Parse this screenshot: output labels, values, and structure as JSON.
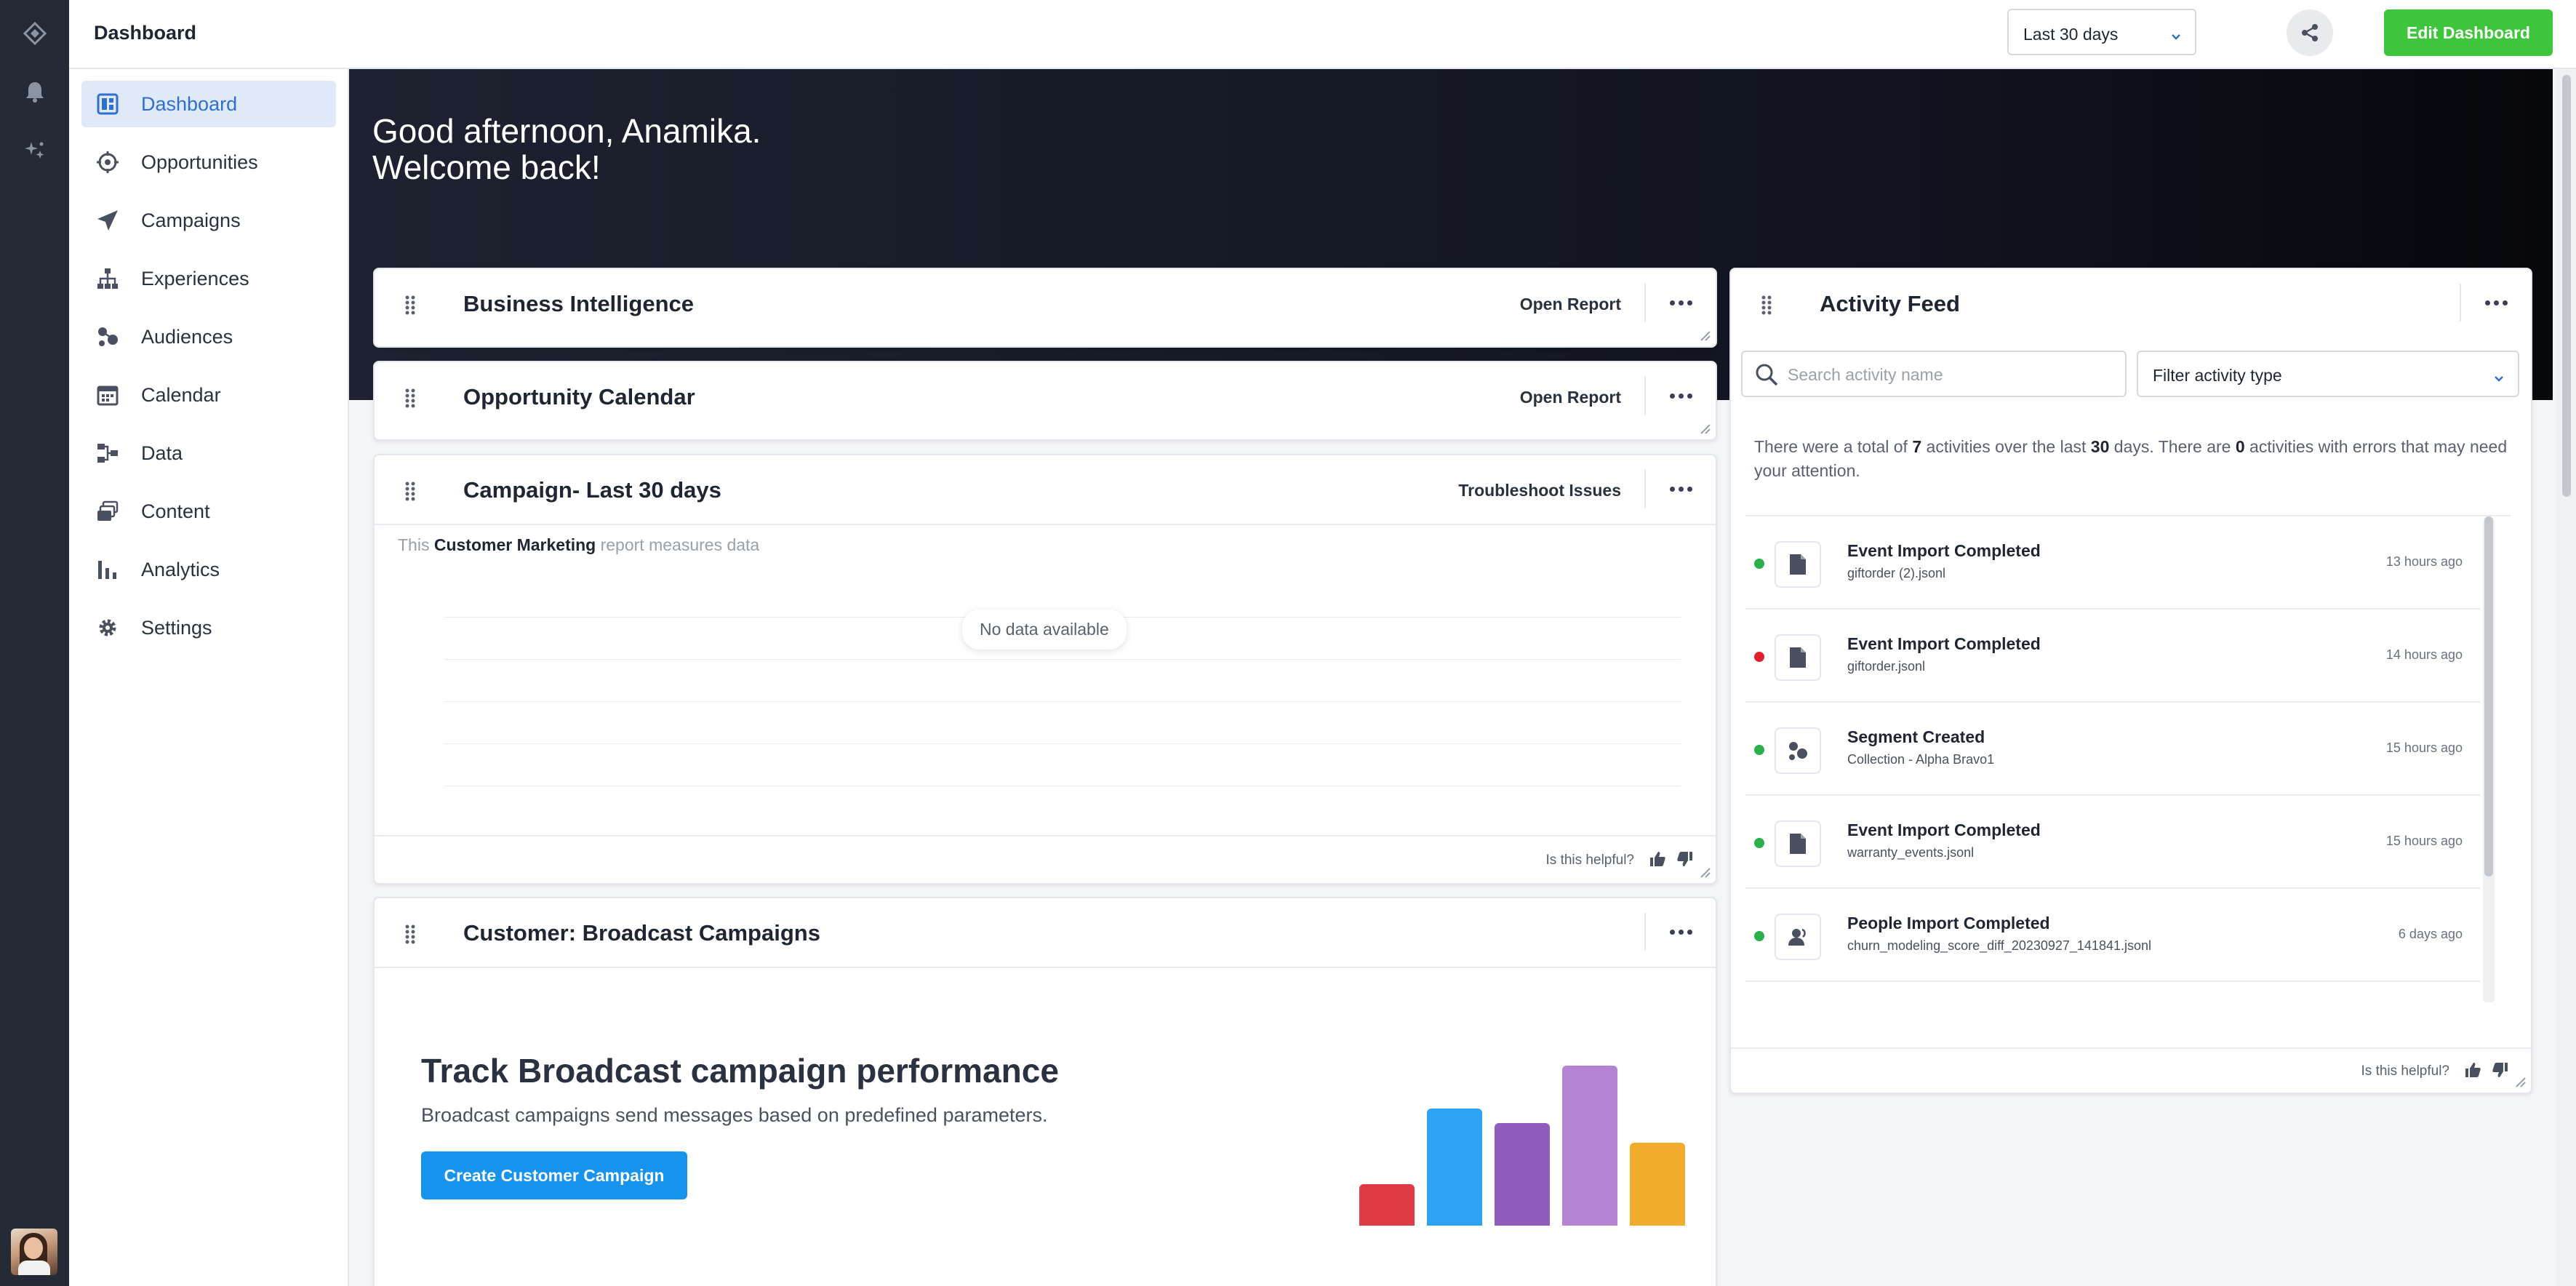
{
  "app": {
    "page_title": "Dashboard"
  },
  "toolbar": {
    "date_range": "Last 30 days",
    "edit_label": "Edit Dashboard"
  },
  "sidebar": {
    "items": [
      {
        "label": "Dashboard",
        "icon": "dashboard-icon",
        "active": true
      },
      {
        "label": "Opportunities",
        "icon": "target-icon",
        "active": false
      },
      {
        "label": "Campaigns",
        "icon": "paper-plane-icon",
        "active": false
      },
      {
        "label": "Experiences",
        "icon": "sitemap-icon",
        "active": false
      },
      {
        "label": "Audiences",
        "icon": "audiences-icon",
        "active": false
      },
      {
        "label": "Calendar",
        "icon": "calendar-icon",
        "active": false
      },
      {
        "label": "Data",
        "icon": "data-icon",
        "active": false
      },
      {
        "label": "Content",
        "icon": "content-icon",
        "active": false
      },
      {
        "label": "Analytics",
        "icon": "bar-chart-icon",
        "active": false
      },
      {
        "label": "Settings",
        "icon": "gear-icon",
        "active": false
      }
    ]
  },
  "hero": {
    "greeting_line1": "Good afternoon, Anamika.",
    "greeting_line2": "Welcome back!"
  },
  "cards": {
    "business_intelligence": {
      "title": "Business Intelligence",
      "action": "Open Report"
    },
    "opportunity_calendar": {
      "title": "Opportunity Calendar",
      "action": "Open Report"
    },
    "campaign": {
      "title": "Campaign- Last 30 days",
      "action": "Troubleshoot Issues",
      "desc_prefix": "This",
      "desc_bold": "Customer Marketing",
      "desc_suffix": "report measures data",
      "no_data": "No data available",
      "helpful": "Is this helpful?"
    },
    "broadcast": {
      "title": "Customer: Broadcast Campaigns",
      "heading": "Track Broadcast campaign performance",
      "subtext": "Broadcast campaigns send messages based on predefined parameters.",
      "button": "Create Customer Campaign",
      "bar_heights": [
        0.26,
        0.73,
        0.64,
        1.0,
        0.52
      ],
      "bar_colors": [
        "#e03a46",
        "#2ea3f2",
        "#8f5dbd",
        "#b284d2",
        "#f2ac2b"
      ]
    }
  },
  "activity_feed": {
    "title": "Activity Feed",
    "search_placeholder": "Search activity name",
    "filter_label": "Filter activity type",
    "summary": {
      "p1": "There were a total of",
      "total": "7",
      "p2": "activities over the last",
      "days": "30",
      "p3": "days. There are",
      "errors": "0",
      "p4": "activities with errors that may need your attention."
    },
    "items": [
      {
        "title": "Event Import Completed",
        "file": "giftorder (2).jsonl",
        "time": "13 hours ago",
        "status": "#2bb04a",
        "icon": "file-icon"
      },
      {
        "title": "Event Import Completed",
        "file": "giftorder.jsonl",
        "time": "14 hours ago",
        "status": "#e0202e",
        "icon": "file-icon"
      },
      {
        "title": "Segment Created",
        "file": "Collection - Alpha Bravo1",
        "time": "15 hours ago",
        "status": "#2bb04a",
        "icon": "segment-icon"
      },
      {
        "title": "Event Import Completed",
        "file": "warranty_events.jsonl",
        "time": "15 hours ago",
        "status": "#2bb04a",
        "icon": "file-icon"
      },
      {
        "title": "People Import Completed",
        "file": "churn_modeling_score_diff_20230927_141841.jsonl",
        "time": "6 days ago",
        "status": "#2bb04a",
        "icon": "people-icon"
      }
    ],
    "helpful": "Is this helpful?"
  }
}
